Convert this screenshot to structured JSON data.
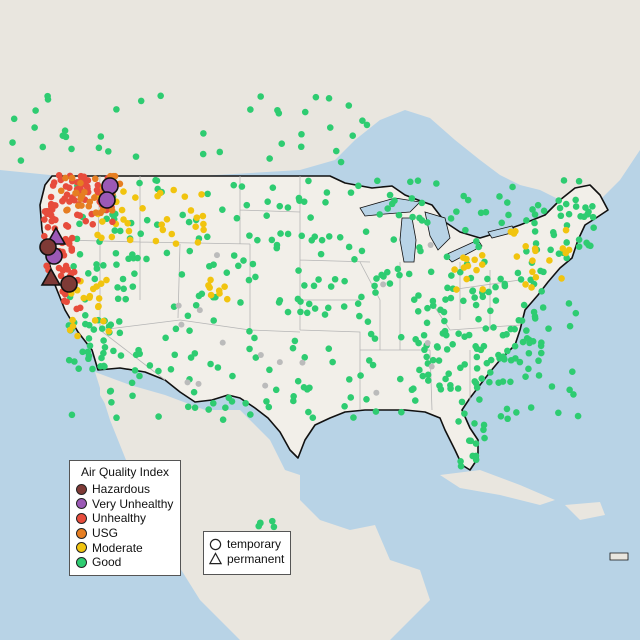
{
  "legend": {
    "title": "Air Quality Index",
    "categories": [
      {
        "label": "Hazardous",
        "color": "#7e3a36"
      },
      {
        "label": "Very Unhealthy",
        "color": "#9b59b6"
      },
      {
        "label": "Unhealthy",
        "color": "#e74c3c"
      },
      {
        "label": "USG",
        "color": "#e67e22"
      },
      {
        "label": "Moderate",
        "color": "#f1c40f"
      },
      {
        "label": "Good",
        "color": "#2ecc71"
      }
    ],
    "station_types": [
      {
        "label": "temporary",
        "shape": "circle"
      },
      {
        "label": "permanent",
        "shape": "triangle"
      }
    ]
  },
  "colors": {
    "water": "#b8d3e6",
    "land_us": "#f2efe9",
    "land_other": "#e8e4dc",
    "border": "#111111",
    "state_line": "#b5b5b5",
    "no_data": "#bbbbbb"
  }
}
